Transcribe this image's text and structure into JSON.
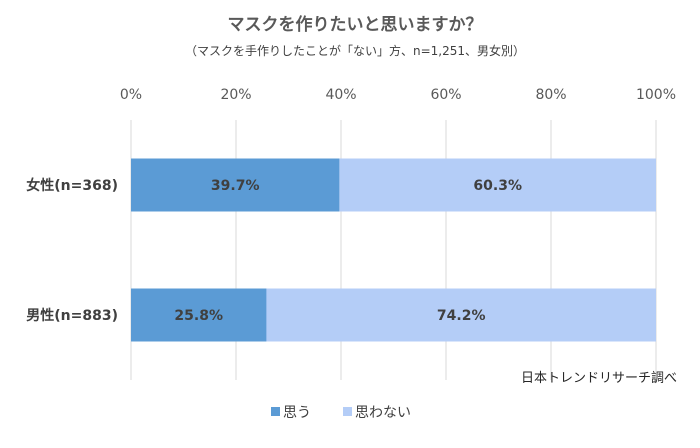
{
  "chart_data": {
    "type": "bar",
    "orientation": "horizontal",
    "stacked": "percent",
    "title": "マスクを作りたいと思いますか？",
    "subtitle": "（マスクを手作りしたことが「ない」方、n=1,251、男女別）",
    "categories": [
      "女性(n=368)",
      "男性(n=883)"
    ],
    "series": [
      {
        "name": "思う",
        "values": [
          39.7,
          25.8
        ],
        "labels": [
          "39.7%",
          "25.8%"
        ],
        "color": "#5b9bd5"
      },
      {
        "name": "思わない",
        "values": [
          60.3,
          74.2
        ],
        "labels": [
          "60.3%",
          "74.2%"
        ],
        "color": "#b4cdf7"
      }
    ],
    "x_ticks": [
      "0%",
      "20%",
      "40%",
      "60%",
      "80%",
      "100%"
    ],
    "xlim": [
      0,
      100
    ],
    "grid": true,
    "legend_position": "bottom",
    "source_note": "日本トレンドリサーチ調べ"
  }
}
